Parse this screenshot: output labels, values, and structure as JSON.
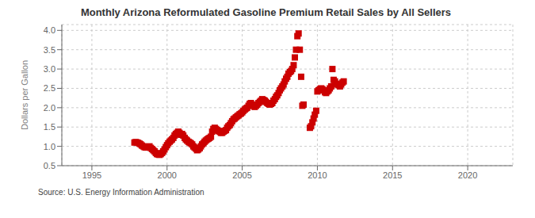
{
  "chart_data": {
    "type": "scatter",
    "title": "Monthly Arizona Reformulated Gasoline Premium Retail Sales by All Sellers",
    "y_label": "Dollars per Gallon",
    "annotations": [
      "Source: U.S. Energy Information Administration"
    ],
    "color": "#cc0000",
    "marker": "square",
    "grid": true,
    "xlim": [
      1993.0,
      2023.0
    ],
    "ylim": [
      0.5,
      4.15
    ],
    "xticks": [
      1995,
      2000,
      2005,
      2010,
      2015,
      2020
    ],
    "yticks": [
      0.5,
      {
        "value": 1.0,
        "label": "1.0"
      },
      1.5,
      {
        "value": 2.0,
        "label": "2.0"
      },
      2.5,
      {
        "value": 3.0,
        "label": "3.0"
      },
      3.5,
      {
        "value": 4.0,
        "label": "4.0"
      }
    ],
    "x": [
      1997.83,
      1997.92,
      1998.0,
      1998.08,
      1998.17,
      1998.25,
      1998.33,
      1998.42,
      1998.5,
      1998.58,
      1998.67,
      1998.75,
      1998.83,
      1998.92,
      1999.0,
      1999.08,
      1999.17,
      1999.25,
      1999.33,
      1999.42,
      1999.5,
      1999.58,
      1999.67,
      1999.75,
      1999.83,
      1999.92,
      2000.0,
      2000.08,
      2000.17,
      2000.25,
      2000.33,
      2000.42,
      2000.5,
      2000.58,
      2000.67,
      2000.75,
      2000.83,
      2000.92,
      2001.0,
      2001.08,
      2001.17,
      2001.25,
      2001.33,
      2001.42,
      2001.5,
      2001.58,
      2001.67,
      2001.75,
      2001.83,
      2001.92,
      2002.0,
      2002.08,
      2002.17,
      2002.25,
      2002.33,
      2002.42,
      2002.5,
      2002.58,
      2002.67,
      2002.75,
      2002.83,
      2002.92,
      2003.0,
      2003.08,
      2003.17,
      2003.25,
      2003.33,
      2003.42,
      2003.5,
      2003.58,
      2003.67,
      2003.75,
      2003.83,
      2003.92,
      2004.0,
      2004.08,
      2004.17,
      2004.25,
      2004.33,
      2004.42,
      2004.5,
      2004.58,
      2004.67,
      2004.75,
      2004.83,
      2004.92,
      2005.0,
      2005.08,
      2005.17,
      2005.25,
      2005.33,
      2005.42,
      2005.5,
      2005.58,
      2005.67,
      2005.75,
      2005.83,
      2005.92,
      2006.0,
      2006.08,
      2006.17,
      2006.25,
      2006.33,
      2006.42,
      2006.5,
      2006.58,
      2006.67,
      2006.75,
      2006.83,
      2006.92,
      2007.0,
      2007.08,
      2007.17,
      2007.25,
      2007.33,
      2007.42,
      2007.5,
      2007.58,
      2007.67,
      2007.75,
      2007.83,
      2007.92,
      2008.0,
      2008.08,
      2008.17,
      2008.25,
      2008.33,
      2008.42,
      2008.5,
      2008.58,
      2008.67,
      2008.75,
      2008.83,
      2008.92,
      2009.0,
      2009.08,
      2009.5,
      2009.58,
      2009.67,
      2009.75,
      2009.83,
      2009.92,
      2010.0,
      2010.08,
      2010.17,
      2010.25,
      2010.33,
      2010.42,
      2010.5,
      2010.58,
      2010.67,
      2010.75,
      2010.83,
      2010.92,
      2011.0,
      2011.08,
      2011.17,
      2011.25,
      2011.33,
      2011.42,
      2011.5,
      2011.58,
      2011.67,
      2011.75
    ],
    "values": [
      1.1,
      1.11,
      1.1,
      1.09,
      1.07,
      1.05,
      1.02,
      1.0,
      0.98,
      0.97,
      0.97,
      0.98,
      1.0,
      0.96,
      0.93,
      0.9,
      0.87,
      0.83,
      0.8,
      0.79,
      0.78,
      0.8,
      0.83,
      0.87,
      0.92,
      0.98,
      1.03,
      1.08,
      1.12,
      1.15,
      1.18,
      1.22,
      1.28,
      1.32,
      1.35,
      1.38,
      1.35,
      1.3,
      1.32,
      1.28,
      1.22,
      1.18,
      1.15,
      1.12,
      1.1,
      1.08,
      1.05,
      1.0,
      0.97,
      0.94,
      0.9,
      0.92,
      0.95,
      1.0,
      1.05,
      1.08,
      1.12,
      1.15,
      1.18,
      1.2,
      1.22,
      1.25,
      1.38,
      1.45,
      1.48,
      1.45,
      1.42,
      1.4,
      1.38,
      1.35,
      1.35,
      1.38,
      1.4,
      1.42,
      1.48,
      1.52,
      1.55,
      1.6,
      1.65,
      1.7,
      1.72,
      1.75,
      1.78,
      1.8,
      1.83,
      1.85,
      1.88,
      1.92,
      1.95,
      1.98,
      2.0,
      2.05,
      2.1,
      2.12,
      2.08,
      2.05,
      2.02,
      2.05,
      2.08,
      2.12,
      2.15,
      2.18,
      2.22,
      2.2,
      2.18,
      2.15,
      2.12,
      2.1,
      2.08,
      2.1,
      2.12,
      2.18,
      2.22,
      2.28,
      2.32,
      2.38,
      2.45,
      2.5,
      2.55,
      2.6,
      2.68,
      2.75,
      2.8,
      2.88,
      2.92,
      2.95,
      3.0,
      3.1,
      3.3,
      3.5,
      3.85,
      3.92,
      3.5,
      2.8,
      2.05,
      2.08,
      1.48,
      1.52,
      1.62,
      1.72,
      1.82,
      1.92,
      2.42,
      2.45,
      2.48,
      2.5,
      2.48,
      2.45,
      2.4,
      2.38,
      2.42,
      2.45,
      2.5,
      2.55,
      3.0,
      2.72,
      2.68,
      2.62,
      2.6,
      2.58,
      2.55,
      2.6,
      2.65,
      2.68
    ]
  }
}
